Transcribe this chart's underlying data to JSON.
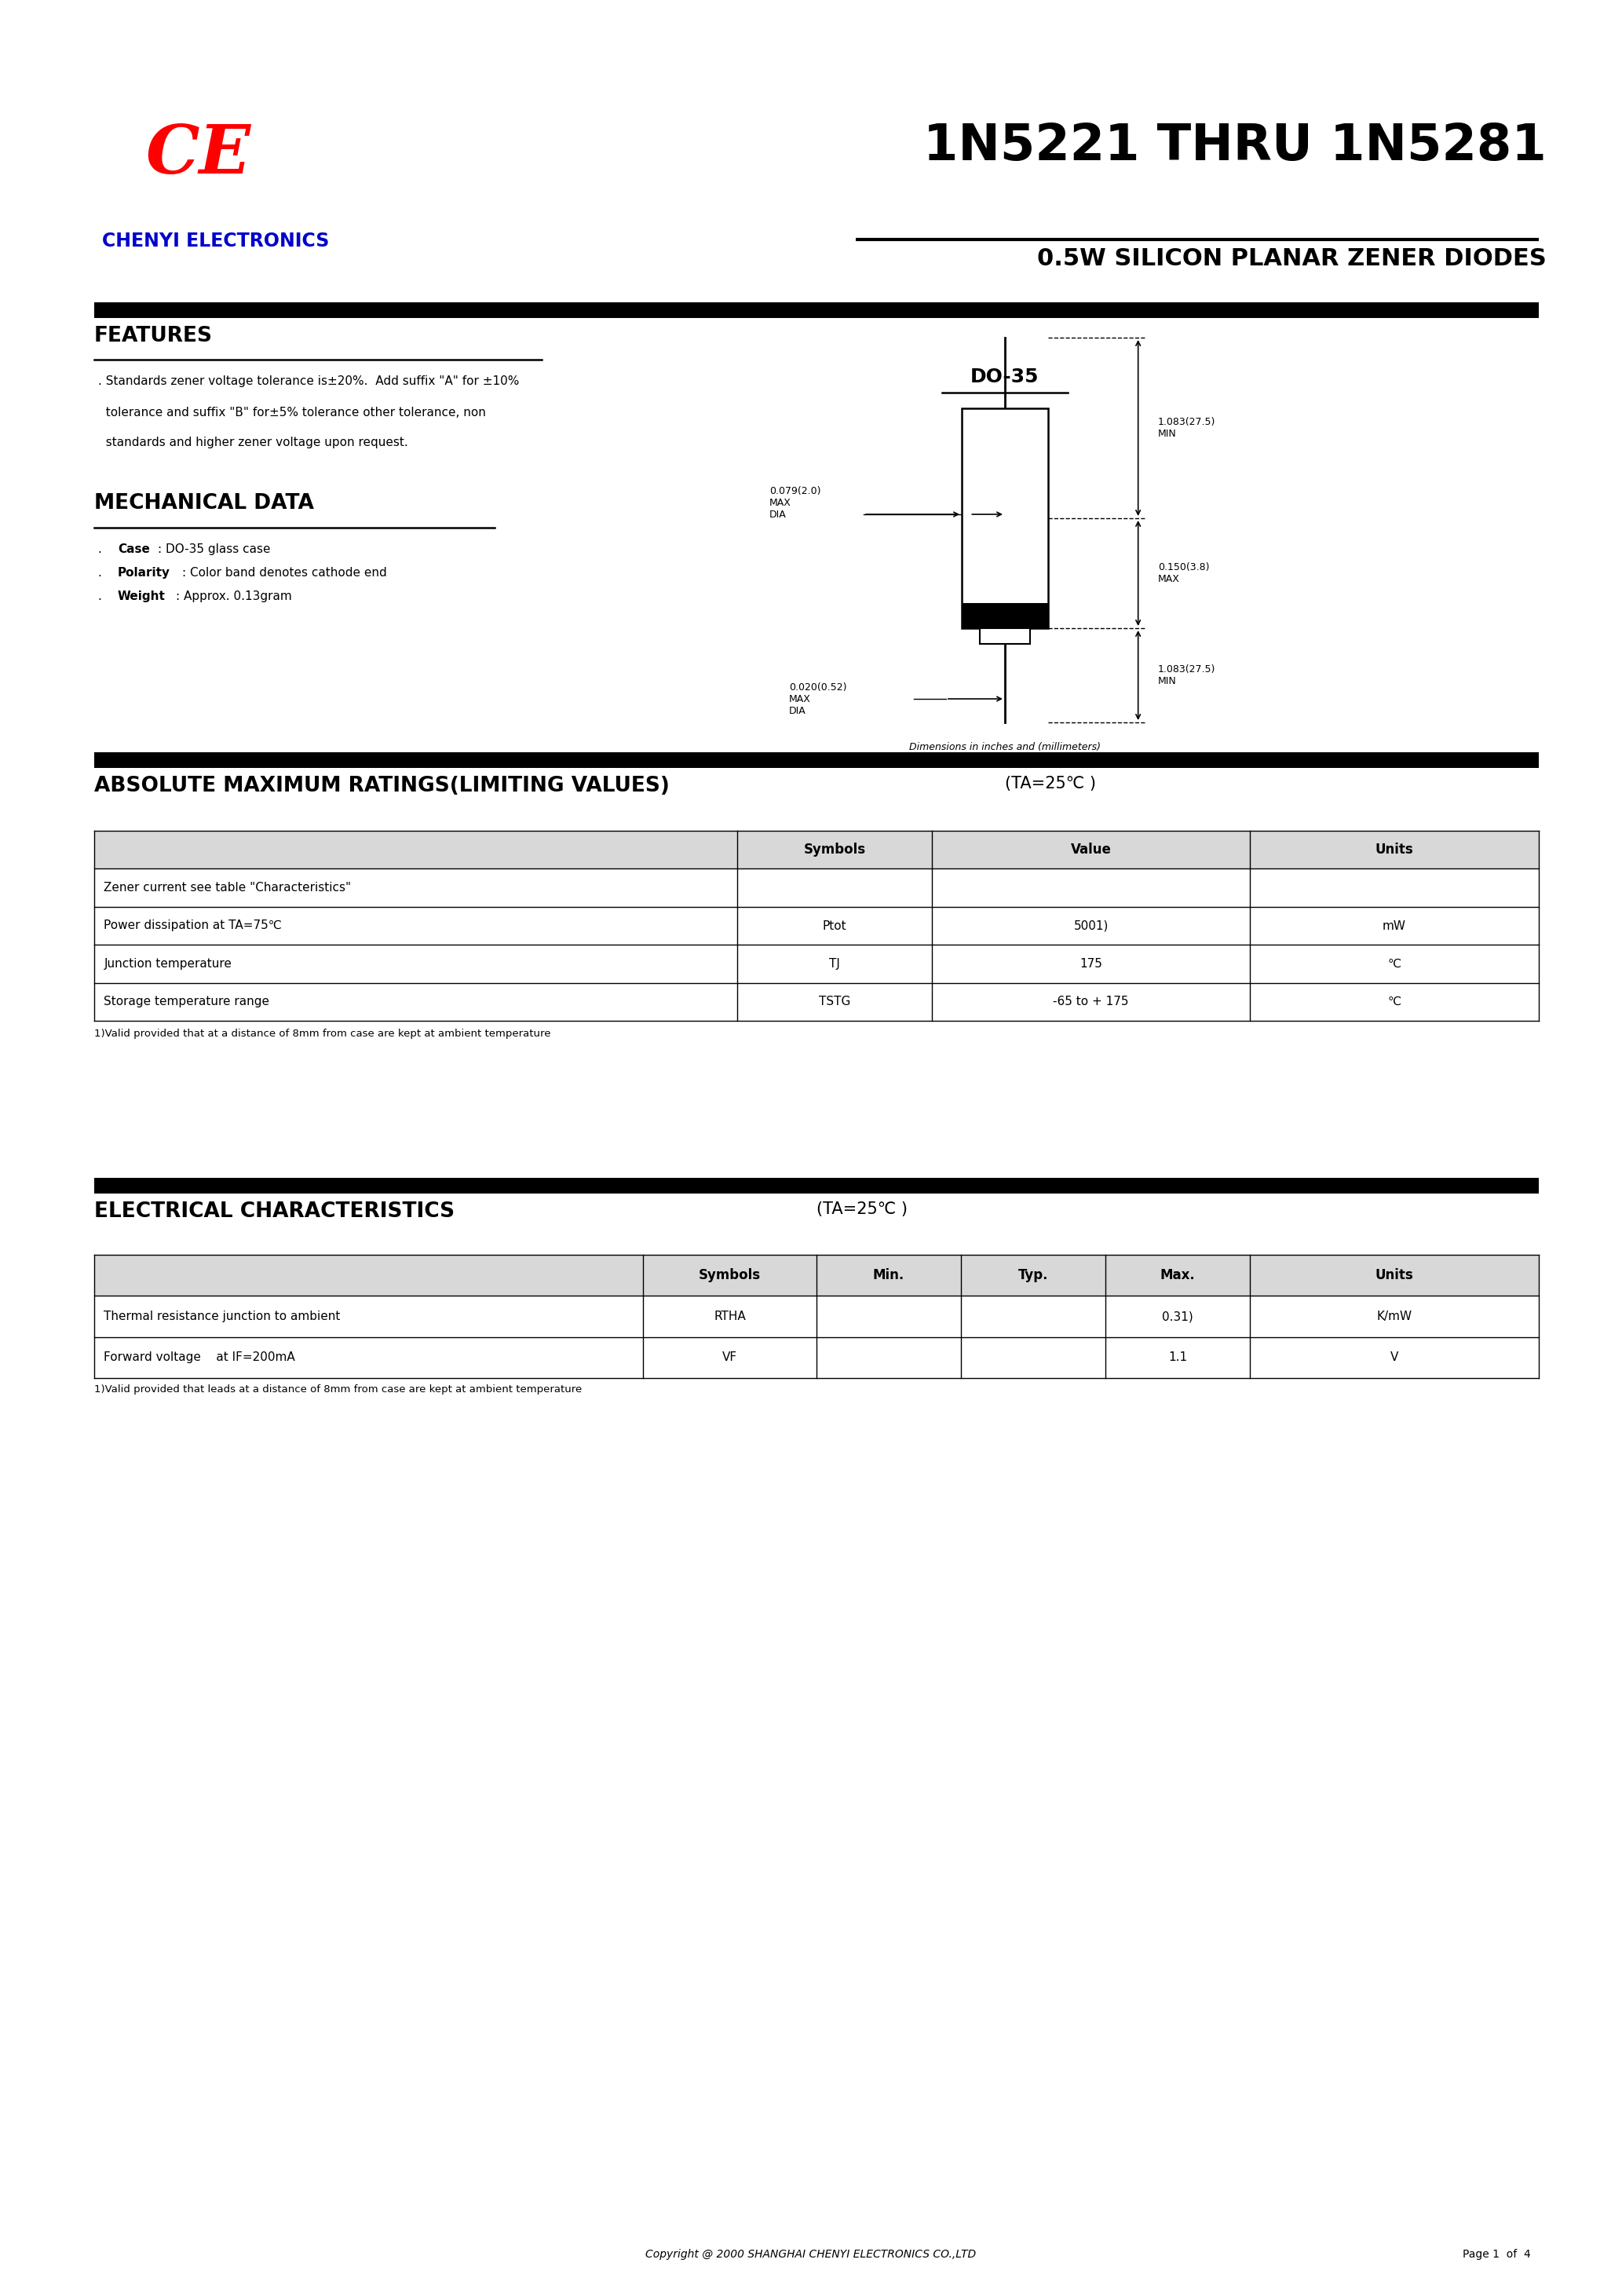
{
  "page_width": 20.66,
  "page_height": 29.24,
  "bg_color": "#ffffff",
  "ce_logo_color": "#ff0000",
  "chenyi_color": "#0000cc",
  "title_color": "#000000",
  "company_name": "CHENYI ELECTRONICS",
  "part_number": "1N5221 THRU 1N5281",
  "subtitle": "0.5W SILICON PLANAR ZENER DIODES",
  "features_title": "FEATURES",
  "features_text1": ". Standards zener voltage tolerance is±20%.  Add suffix \"A\" for ±10%",
  "features_text2": "  tolerance and suffix \"B\" for±5% tolerance other tolerance, non",
  "features_text3": "  standards and higher zener voltage upon request.",
  "mech_title": "MECHANICAL DATA",
  "mech_text1": ". Case: DO-35 glass case",
  "mech_text2": ". Polarity: Color band denotes cathode end",
  "mech_text3": ". Weight: Approx. 0.13gram",
  "do35_label": "DO-35",
  "dim_note": "Dimensions in inches and (millimeters)",
  "abs_title": "ABSOLUTE MAXIMUM RATINGS(LIMITING VALUES)",
  "abs_temp": "(TA=25℃ )",
  "abs_headers": [
    "",
    "Symbols",
    "Value",
    "Units"
  ],
  "abs_rows": [
    [
      "Zener current see table \"Characteristics\"",
      "",
      "",
      ""
    ],
    [
      "Power dissipation at TA=75℃",
      "Ptot",
      "5001)",
      "mW"
    ],
    [
      "Junction temperature",
      "TJ",
      "175",
      "℃"
    ],
    [
      "Storage temperature range",
      "TSTG",
      "-65 to + 175",
      "℃"
    ]
  ],
  "abs_footnote": "1)Valid provided that at a distance of 8mm from case are kept at ambient temperature",
  "elec_title": "ELECTRICAL CHARACTERISTICS",
  "elec_temp": "(TA=25℃ )",
  "elec_headers": [
    "",
    "Symbols",
    "Min.",
    "Typ.",
    "Max.",
    "Units"
  ],
  "elec_rows": [
    [
      "Thermal resistance junction to ambient",
      "RTHA",
      "",
      "",
      "0.31)",
      "K/mW"
    ],
    [
      "Forward voltage    at IF=200mA",
      "VF",
      "",
      "",
      "1.1",
      "V"
    ]
  ],
  "elec_footnote": "1)Valid provided that leads at a distance of 8mm from case are kept at ambient temperature",
  "copyright": "Copyright @ 2000 SHANGHAI CHENYI ELECTRONICS CO.,LTD",
  "page_info": "Page 1  of  4"
}
